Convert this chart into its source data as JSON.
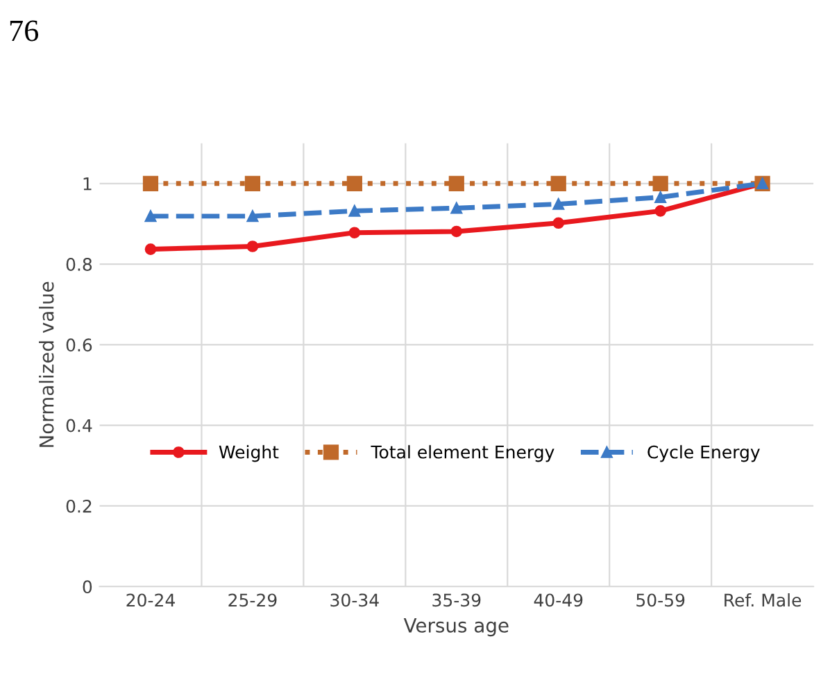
{
  "chart_data": {
    "type": "line",
    "xlabel": "Versus age",
    "ylabel": "Normalized value",
    "annotations": [
      "76"
    ],
    "categories": [
      "20-24",
      "25-29",
      "30-34",
      "35-39",
      "40-49",
      "50-59",
      "Ref. Male"
    ],
    "series": [
      {
        "name": "Weight",
        "color": "#e8191e",
        "marker": "circle",
        "line_style": "solid",
        "values": [
          0.837,
          0.844,
          0.878,
          0.881,
          0.902,
          0.932,
          1
        ]
      },
      {
        "name": "Total element Energy",
        "color": "#c0692a",
        "marker": "square",
        "line_style": "dotted",
        "values": [
          1,
          1,
          1,
          1,
          1,
          1,
          1
        ]
      },
      {
        "name": "Cycle Energy",
        "color": "#3c7ac6",
        "marker": "triangle",
        "line_style": "dashed",
        "values": [
          0.919,
          0.919,
          0.932,
          0.939,
          0.949,
          0.966,
          1
        ]
      }
    ],
    "ylim": [
      0,
      1.1
    ],
    "yticks": [
      0,
      0.2,
      0.4,
      0.6,
      0.8,
      1
    ],
    "grid": true,
    "legend": "bottom"
  }
}
